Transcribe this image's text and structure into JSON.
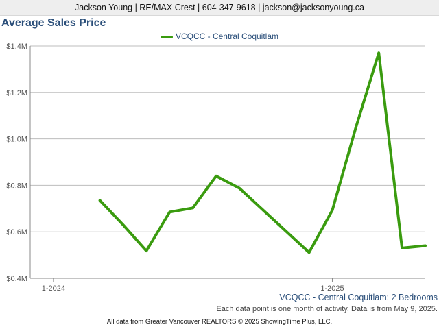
{
  "header": {
    "text": "Jackson Young | RE/MAX Crest | 604-347-9618 | jackson@jacksonyoung.ca"
  },
  "colors": {
    "line": "#3a9b0f",
    "grid": "#bdbdbd",
    "title": "#2b4f7a"
  },
  "chart_data": {
    "type": "line",
    "title": "Average Sales Price",
    "subtitle": "VCQCC - Central Coquitlam: 2 Bedrooms",
    "series": [
      {
        "name": "VCQCC - Central Coquitlam",
        "x": [
          "2024-03",
          "2024-04",
          "2024-05",
          "2024-06",
          "2024-07",
          "2024-08",
          "2024-09",
          "2024-12",
          "2025-01",
          "2025-02",
          "2025-03",
          "2025-04",
          "2025-05"
        ],
        "values": [
          735000,
          630000,
          518000,
          685000,
          703000,
          840000,
          788000,
          511000,
          693000,
          1045000,
          1370000,
          530000,
          540000
        ]
      }
    ],
    "x_ticks": [
      {
        "label": "1-2024",
        "date": "2024-01"
      },
      {
        "label": "1-2025",
        "date": "2025-01"
      }
    ],
    "x_range": [
      "2023-12",
      "2025-05"
    ],
    "y_ticks": [
      {
        "value": 400000,
        "label": "$0.4M"
      },
      {
        "value": 600000,
        "label": "$0.6M"
      },
      {
        "value": 800000,
        "label": "$0.8M"
      },
      {
        "value": 1000000,
        "label": "$1.0M"
      },
      {
        "value": 1200000,
        "label": "$1.2M"
      },
      {
        "value": 1400000,
        "label": "$1.4M"
      }
    ],
    "ylim": [
      400000,
      1400000
    ],
    "grid": true,
    "legend_position": "top-center",
    "note": "Each data point is one month of activity. Data is from May 9, 2025."
  },
  "footer": {
    "text": "All data from Greater Vancouver REALTORS © 2025 ShowingTime Plus, LLC."
  }
}
